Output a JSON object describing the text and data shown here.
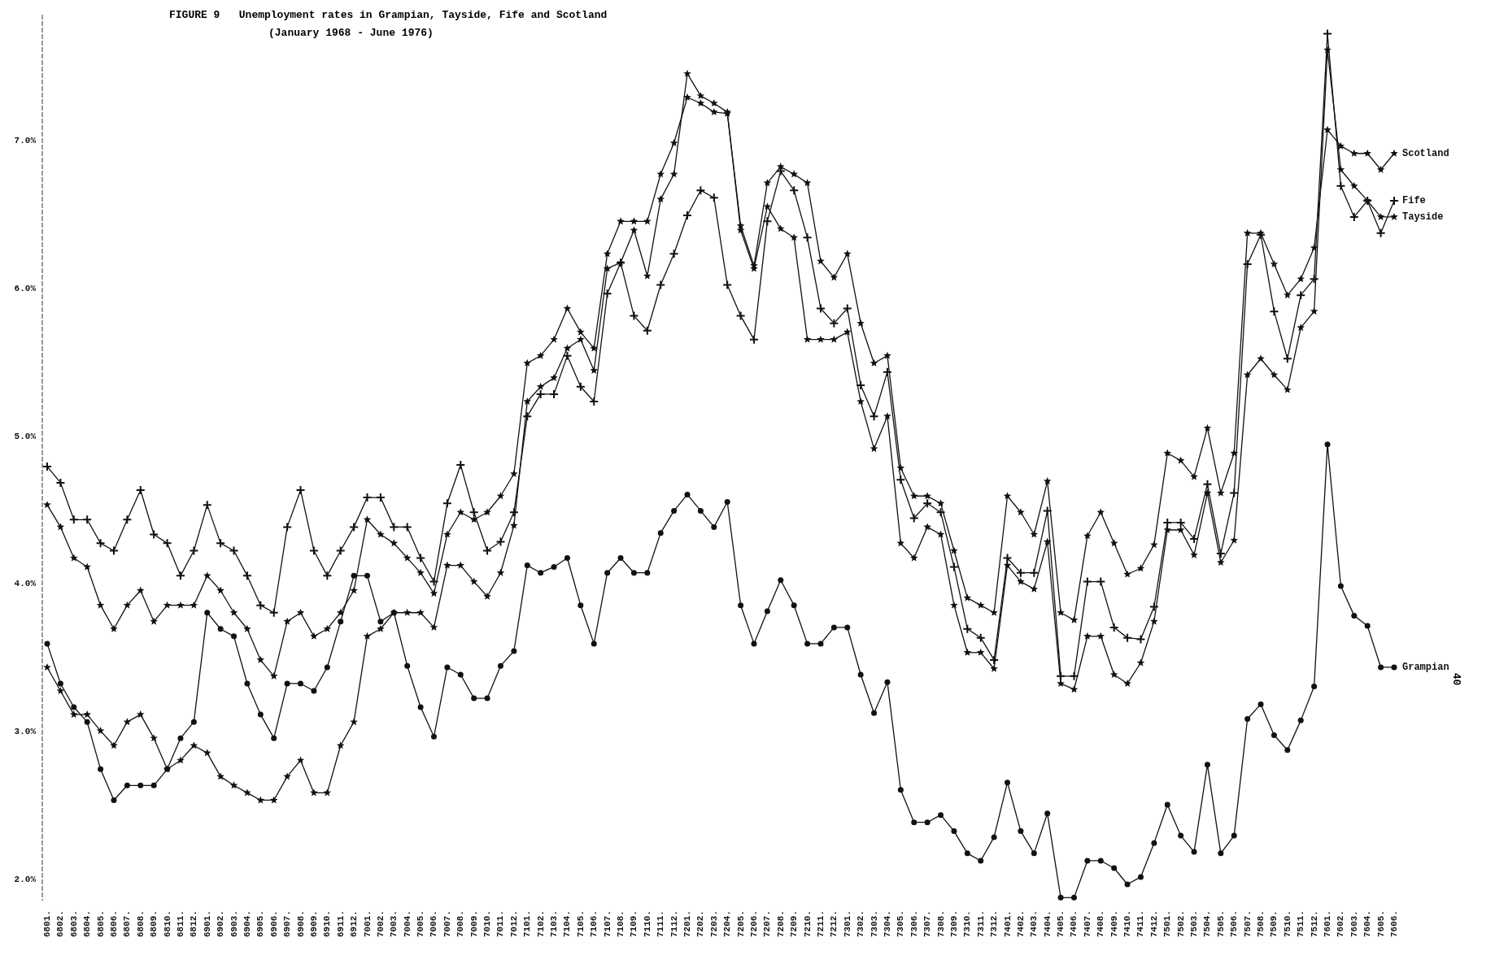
{
  "chart_data": {
    "type": "line",
    "title": "FIGURE 9   Unemployment rates in Grampian, Tayside, Fife and Scotland",
    "subtitle": "(January 1968 - June 1976)",
    "categories": [
      "6801.",
      "6802.",
      "6803.",
      "6804.",
      "6805.",
      "6806.",
      "6807.",
      "6808.",
      "6809.",
      "6810.",
      "6811.",
      "6812.",
      "6901.",
      "6902.",
      "6903.",
      "6904.",
      "6905.",
      "6906.",
      "6907.",
      "6908.",
      "6909.",
      "6910.",
      "6911.",
      "6912.",
      "7001.",
      "7002.",
      "7003.",
      "7004.",
      "7005.",
      "7006.",
      "7007.",
      "7008.",
      "7009.",
      "7010.",
      "7011.",
      "7012.",
      "7101.",
      "7102.",
      "7103.",
      "7104.",
      "7105.",
      "7106.",
      "7107.",
      "7108.",
      "7109.",
      "7110.",
      "7111.",
      "7112.",
      "7201.",
      "7202.",
      "7203.",
      "7204.",
      "7205.",
      "7206.",
      "7207.",
      "7208.",
      "7209.",
      "7210.",
      "7211.",
      "7212.",
      "7301.",
      "7302.",
      "7303.",
      "7304.",
      "7305.",
      "7306.",
      "7307.",
      "7308.",
      "7309.",
      "7310.",
      "7311.",
      "7312.",
      "7401.",
      "7402.",
      "7403.",
      "7404.",
      "7405.",
      "7406.",
      "7407.",
      "7408.",
      "7409.",
      "7410.",
      "7411.",
      "7412.",
      "7501.",
      "7502.",
      "7503.",
      "7504.",
      "7505.",
      "7506.",
      "7507.",
      "7508.",
      "7509.",
      "7510.",
      "7511.",
      "7512.",
      "7601.",
      "7602.",
      "7603.",
      "7604.",
      "7605.",
      "7606."
    ],
    "series": [
      {
        "name": "Scotland",
        "color": "#111111",
        "marker": "star",
        "values": [
          4.53,
          4.38,
          4.17,
          4.11,
          3.85,
          3.69,
          3.85,
          3.95,
          3.74,
          3.85,
          3.85,
          3.85,
          4.05,
          3.95,
          3.8,
          3.69,
          3.48,
          3.37,
          3.74,
          3.8,
          3.64,
          3.69,
          3.8,
          3.95,
          4.43,
          4.33,
          4.27,
          4.17,
          4.07,
          3.93,
          4.33,
          4.48,
          4.43,
          4.48,
          4.59,
          4.74,
          5.49,
          5.54,
          5.65,
          5.86,
          5.7,
          5.59,
          6.23,
          6.45,
          6.45,
          6.45,
          6.77,
          6.98,
          7.29,
          7.25,
          7.19,
          7.18,
          6.42,
          6.15,
          6.71,
          6.82,
          6.77,
          6.71,
          6.18,
          6.07,
          6.23,
          5.76,
          5.49,
          5.54,
          4.78,
          4.59,
          4.59,
          4.54,
          4.22,
          3.9,
          3.85,
          3.8,
          4.59,
          4.48,
          4.33,
          4.69,
          3.8,
          3.75,
          4.32,
          4.48,
          4.27,
          4.06,
          4.1,
          4.26,
          4.88,
          4.83,
          4.72,
          5.05,
          4.61,
          4.88,
          6.37,
          6.37,
          6.16,
          5.95,
          6.06,
          6.27,
          7.07,
          6.96,
          6.91,
          6.91,
          6.8,
          6.91
        ]
      },
      {
        "name": "Fife",
        "color": "#111111",
        "marker": "cross",
        "values": [
          4.79,
          4.68,
          4.43,
          4.43,
          4.27,
          4.22,
          4.43,
          4.63,
          4.33,
          4.27,
          4.05,
          4.22,
          4.53,
          4.27,
          4.22,
          4.05,
          3.85,
          3.8,
          4.38,
          4.63,
          4.22,
          4.05,
          4.22,
          4.38,
          4.58,
          4.58,
          4.38,
          4.38,
          4.17,
          4.01,
          4.54,
          4.8,
          4.48,
          4.22,
          4.28,
          4.48,
          5.13,
          5.28,
          5.28,
          5.54,
          5.33,
          5.23,
          5.96,
          6.17,
          5.81,
          5.71,
          6.02,
          6.23,
          6.49,
          6.66,
          6.61,
          6.02,
          5.81,
          5.65,
          6.45,
          6.79,
          6.66,
          6.34,
          5.86,
          5.76,
          5.86,
          5.34,
          5.13,
          5.43,
          4.7,
          4.44,
          4.54,
          4.48,
          4.11,
          3.69,
          3.63,
          3.48,
          4.17,
          4.07,
          4.07,
          4.49,
          3.37,
          3.37,
          4.01,
          4.01,
          3.7,
          3.63,
          3.62,
          3.84,
          4.41,
          4.41,
          4.3,
          4.67,
          4.2,
          4.61,
          6.16,
          6.36,
          5.84,
          5.52,
          5.95,
          6.06,
          7.72,
          6.69,
          6.48,
          6.59,
          6.37,
          6.59
        ]
      },
      {
        "name": "Tayside",
        "color": "#111111",
        "marker": "star",
        "values": [
          3.43,
          3.27,
          3.11,
          3.11,
          3.0,
          2.9,
          3.06,
          3.11,
          2.95,
          2.74,
          2.8,
          2.9,
          2.85,
          2.69,
          2.63,
          2.58,
          2.53,
          2.53,
          2.69,
          2.8,
          2.58,
          2.58,
          2.9,
          3.06,
          3.64,
          3.69,
          3.8,
          3.8,
          3.8,
          3.7,
          4.12,
          4.12,
          4.01,
          3.91,
          4.07,
          4.39,
          5.23,
          5.33,
          5.39,
          5.59,
          5.65,
          5.44,
          6.13,
          6.17,
          6.39,
          6.08,
          6.6,
          6.77,
          7.45,
          7.3,
          7.25,
          7.19,
          6.39,
          6.13,
          6.55,
          6.4,
          6.34,
          5.65,
          5.65,
          5.65,
          5.7,
          5.23,
          4.91,
          5.13,
          4.27,
          4.17,
          4.38,
          4.33,
          3.85,
          3.53,
          3.53,
          3.42,
          4.12,
          4.01,
          3.96,
          4.28,
          3.32,
          3.28,
          3.64,
          3.64,
          3.38,
          3.32,
          3.46,
          3.74,
          4.36,
          4.36,
          4.19,
          4.61,
          4.14,
          4.29,
          5.41,
          5.52,
          5.41,
          5.31,
          5.73,
          5.84,
          7.61,
          6.8,
          6.69,
          6.59,
          6.48,
          6.48
        ]
      },
      {
        "name": "Grampian",
        "color": "#111111",
        "marker": "circle",
        "values": [
          3.59,
          3.32,
          3.16,
          3.06,
          2.74,
          2.53,
          2.63,
          2.63,
          2.63,
          2.74,
          2.95,
          3.06,
          3.8,
          3.69,
          3.64,
          3.32,
          3.11,
          2.95,
          3.32,
          3.32,
          3.27,
          3.43,
          3.74,
          4.05,
          4.05,
          3.74,
          3.8,
          3.44,
          3.16,
          2.96,
          3.43,
          3.38,
          3.22,
          3.22,
          3.44,
          3.54,
          4.12,
          4.07,
          4.11,
          4.17,
          3.85,
          3.59,
          4.07,
          4.17,
          4.07,
          4.07,
          4.34,
          4.49,
          4.6,
          4.49,
          4.38,
          4.55,
          3.85,
          3.59,
          3.81,
          4.02,
          3.85,
          3.59,
          3.59,
          3.7,
          3.7,
          3.38,
          3.12,
          3.33,
          2.6,
          2.38,
          2.38,
          2.43,
          2.32,
          2.17,
          2.12,
          2.28,
          2.65,
          2.32,
          2.17,
          2.44,
          1.87,
          1.87,
          2.12,
          2.12,
          2.07,
          1.96,
          2.01,
          2.24,
          2.5,
          2.29,
          2.18,
          2.77,
          2.17,
          2.29,
          3.08,
          3.18,
          2.97,
          2.87,
          3.07,
          3.3,
          4.94,
          3.98,
          3.78,
          3.71,
          3.43,
          3.43
        ]
      }
    ],
    "ylim": [
      1.85,
      7.85
    ],
    "yticks": [
      {
        "value": 2,
        "label": "2.0%"
      },
      {
        "value": 3,
        "label": "3.0%"
      },
      {
        "value": 4,
        "label": "4.0%"
      },
      {
        "value": 5,
        "label": "5.0%"
      },
      {
        "value": 6,
        "label": "6.0%"
      },
      {
        "value": 7,
        "label": "7.0%"
      }
    ],
    "annotations": [
      "40"
    ],
    "line_style": "solid"
  }
}
